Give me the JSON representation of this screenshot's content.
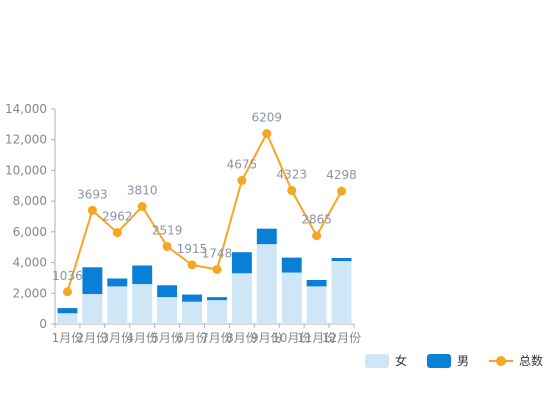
{
  "chart_data": {
    "type": "bar",
    "categories": [
      "1月份",
      "2月份",
      "3月份",
      "4月份",
      "5月份",
      "6月份",
      "7月份",
      "8月份",
      "9月份",
      "10月份",
      "11月份",
      "12月份"
    ],
    "series": [
      {
        "name": "女",
        "type": "bar",
        "stack": true,
        "values": [
          700,
          1950,
          2450,
          2600,
          1750,
          1450,
          1550,
          3300,
          5200,
          3350,
          2450,
          4100
        ]
      },
      {
        "name": "男",
        "type": "bar",
        "stack": true,
        "values": [
          336,
          1743,
          512,
          1210,
          769,
          465,
          198,
          1375,
          1009,
          973,
          415,
          198
        ]
      },
      {
        "name": "总数",
        "type": "line",
        "values": [
          2100,
          7400,
          5950,
          7650,
          5050,
          3850,
          3550,
          9350,
          12400,
          8700,
          5750,
          8650
        ],
        "labels": [
          "1036",
          "3693",
          "2962",
          "3810",
          "2519",
          "1915",
          "1748",
          "4675",
          "6209",
          "4323",
          "2865",
          "4298"
        ]
      }
    ],
    "ylim": [
      0,
      14000
    ],
    "yticks": [
      0,
      2000,
      4000,
      6000,
      8000,
      10000,
      12000,
      14000
    ],
    "ytick_labels": [
      "0",
      "2,000",
      "4,000",
      "6,000",
      "8,000",
      "10,000",
      "12,000",
      "14,000"
    ],
    "legend_position": "bottom-right",
    "grid": false,
    "colors": {
      "女": "#cfe6f7",
      "男": "#0a7fd6",
      "总数": "#f5a623",
      "axis": "#b0b0b0",
      "tick_text": "#888888",
      "label_text": "#8a94a6"
    }
  }
}
